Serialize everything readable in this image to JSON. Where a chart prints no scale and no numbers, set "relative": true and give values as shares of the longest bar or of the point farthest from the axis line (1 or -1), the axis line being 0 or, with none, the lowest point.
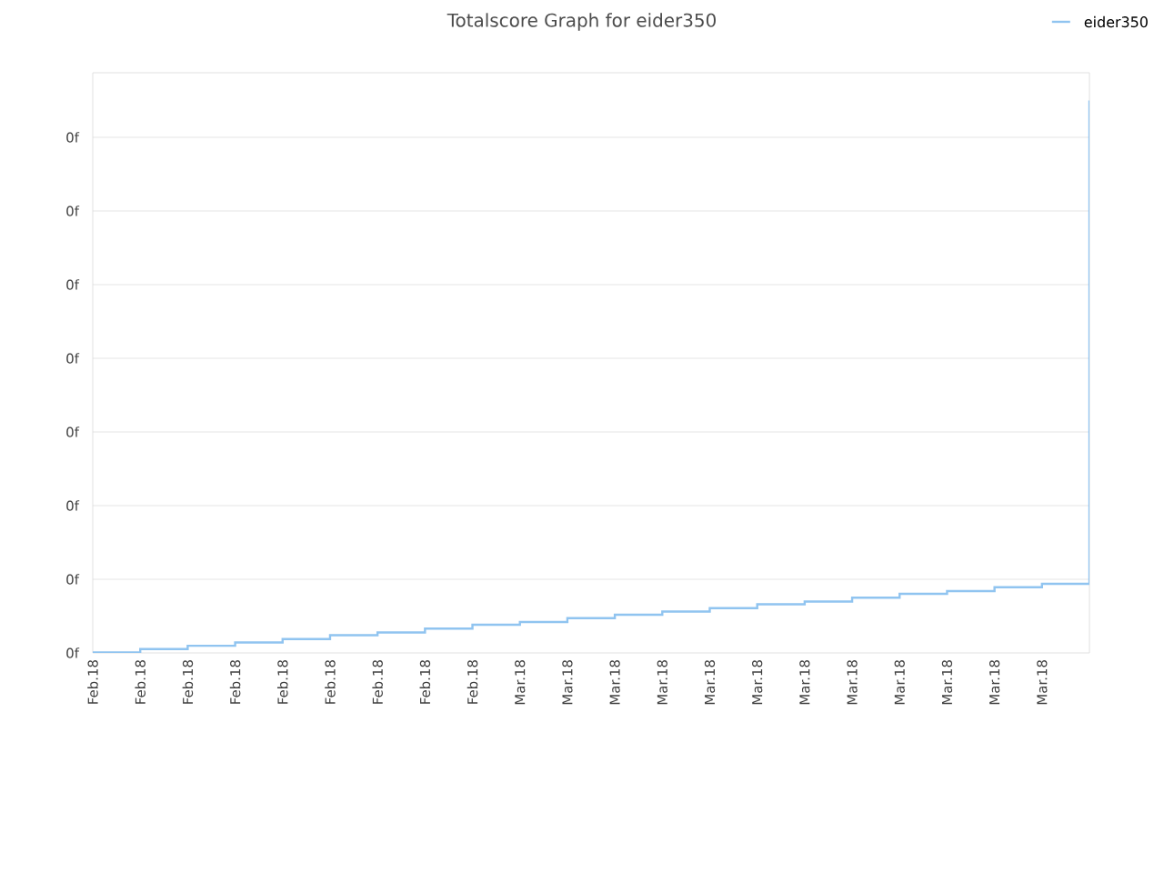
{
  "chart_data": {
    "type": "step",
    "title": "Totalscore Graph for eider350",
    "relative": true,
    "categories": [
      "Feb.18",
      "Feb.18",
      "Feb.18",
      "Feb.18",
      "Feb.18",
      "Feb.18",
      "Feb.18",
      "Feb.18",
      "Feb.18",
      "Mar.18",
      "Mar.18",
      "Mar.18",
      "Mar.18",
      "Mar.18",
      "Mar.18",
      "Mar.18",
      "Mar.18",
      "Mar.18",
      "Mar.18",
      "Mar.18",
      "Mar.18",
      null
    ],
    "series": [
      {
        "name": "eider350",
        "color": "#90c4f0",
        "values": [
          0.001,
          0.007,
          0.013,
          0.019,
          0.025,
          0.032,
          0.037,
          0.044,
          0.051,
          0.056,
          0.063,
          0.069,
          0.075,
          0.081,
          0.088,
          0.093,
          0.1,
          0.107,
          0.112,
          0.119,
          0.125,
          1
        ]
      }
    ],
    "annotations": [
      "0f",
      "0f",
      "0f",
      "0f",
      "0f",
      "0f",
      "0f",
      "0f"
    ],
    "grid": "y",
    "legend": "top right"
  }
}
